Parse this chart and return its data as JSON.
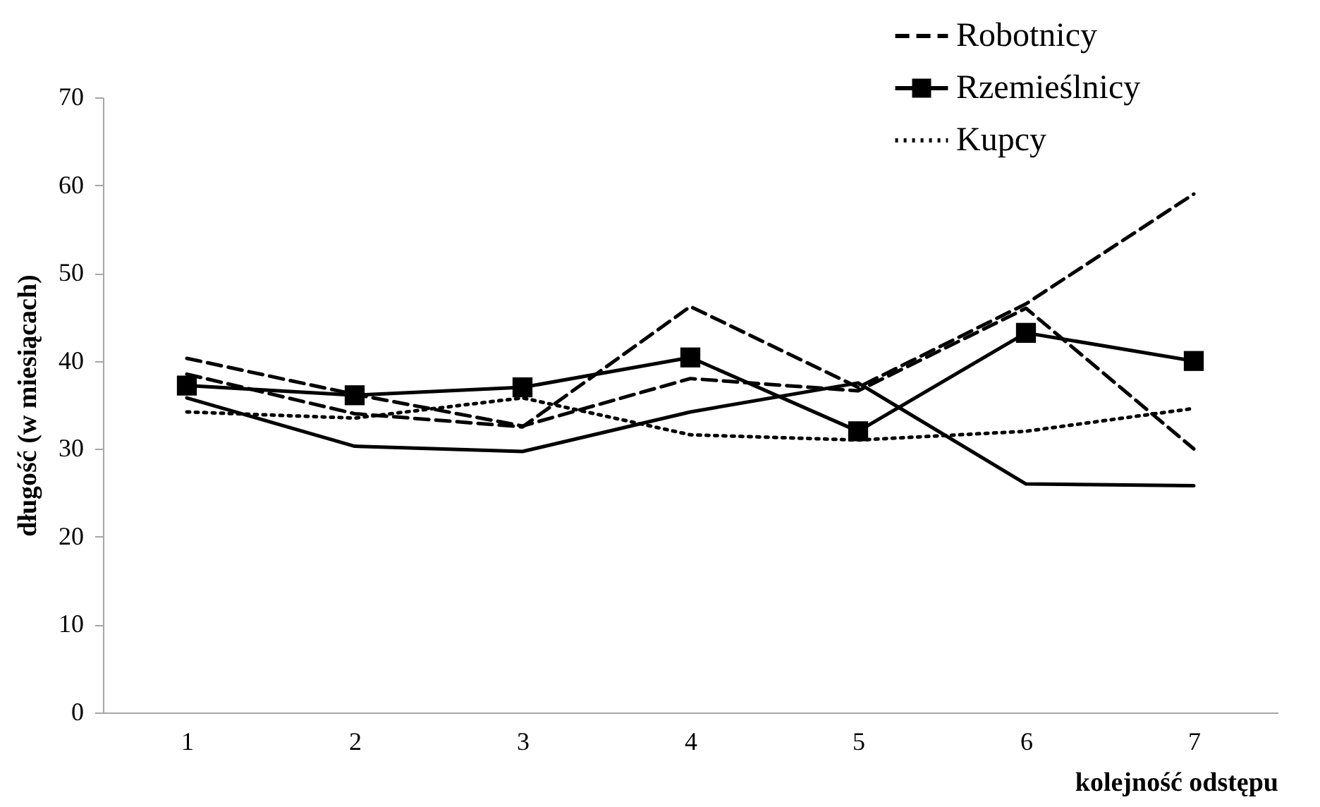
{
  "chart_data": {
    "type": "line",
    "xlabel": "kolejność odstępu",
    "ylabel": "długość (w miesiącach)",
    "categories": [
      "1",
      "2",
      "3",
      "4",
      "5",
      "6",
      "7"
    ],
    "ylim": [
      0,
      70
    ],
    "yticks": [
      0,
      10,
      20,
      30,
      40,
      50,
      60,
      70
    ],
    "grid": false,
    "legend": "top right",
    "series": [
      {
        "name": "Robotnicy",
        "color": "#000000",
        "line_style": "dashed",
        "marker": "none",
        "values": [
          38.5,
          34,
          32.5,
          46.2,
          37,
          46.5,
          59
        ]
      },
      {
        "name": "Rzemieślnicy",
        "color": "#000000",
        "line_style": "solid",
        "marker": "square",
        "values": [
          37.2,
          36.1,
          37,
          40.4,
          32,
          43.2,
          40
        ]
      },
      {
        "name": "Kupcy",
        "color": "#000000",
        "line_style": "dotted",
        "marker": "none",
        "values": [
          34.2,
          33.5,
          35.8,
          31.6,
          31,
          32,
          34.6
        ]
      },
      {
        "color": "#000000",
        "line_style": "dashed",
        "marker": "none",
        "values": [
          40.3,
          36.2,
          32.6,
          38,
          36.6,
          46,
          30
        ]
      },
      {
        "color": "#000000",
        "line_style": "solid",
        "marker": "none",
        "values": [
          35.8,
          30.3,
          29.7,
          34.2,
          37.5,
          26,
          25.8
        ]
      }
    ]
  }
}
